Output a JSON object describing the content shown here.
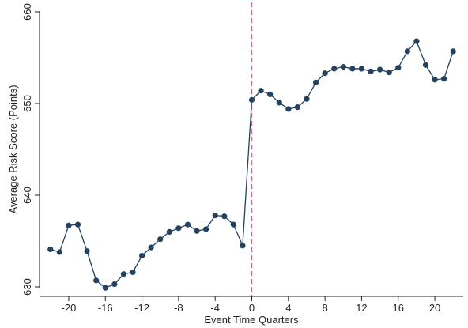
{
  "chart_data": {
    "type": "line",
    "title": "",
    "xlabel": "Event Time Quarters",
    "ylabel": "Average Risk Score (Points)",
    "xlim": [
      -22.5,
      22.5
    ],
    "ylim": [
      630,
      660
    ],
    "x_ticks": [
      -20,
      -16,
      -12,
      -8,
      -4,
      0,
      4,
      8,
      12,
      16,
      20
    ],
    "y_ticks": [
      630,
      640,
      650,
      660
    ],
    "grid": false,
    "legend": "none",
    "reference_line": {
      "x": 0,
      "style": "dashed",
      "color": "#e0607e"
    },
    "series": [
      {
        "color": "#24425f",
        "marker": "circle",
        "x": [
          -22,
          -21,
          -20,
          -19,
          -18,
          -17,
          -16,
          -15,
          -14,
          -13,
          -12,
          -11,
          -10,
          -9,
          -8,
          -7,
          -6,
          -5,
          -4,
          -3,
          -2,
          -1,
          0,
          1,
          2,
          3,
          4,
          5,
          6,
          7,
          8,
          9,
          10,
          11,
          12,
          13,
          14,
          15,
          16,
          17,
          18,
          19,
          20,
          21,
          22
        ],
        "y": [
          634.1,
          633.8,
          636.7,
          636.8,
          633.9,
          630.7,
          629.9,
          630.3,
          631.4,
          631.6,
          633.4,
          634.3,
          635.2,
          636.0,
          636.4,
          636.8,
          636.1,
          636.3,
          637.8,
          637.7,
          636.8,
          634.5,
          650.4,
          651.4,
          651.0,
          650.1,
          649.4,
          649.6,
          650.5,
          652.3,
          653.3,
          653.8,
          654.0,
          653.8,
          653.8,
          653.5,
          653.7,
          653.4,
          653.9,
          655.7,
          656.8,
          654.2,
          652.6,
          652.7,
          655.7
        ]
      }
    ]
  }
}
